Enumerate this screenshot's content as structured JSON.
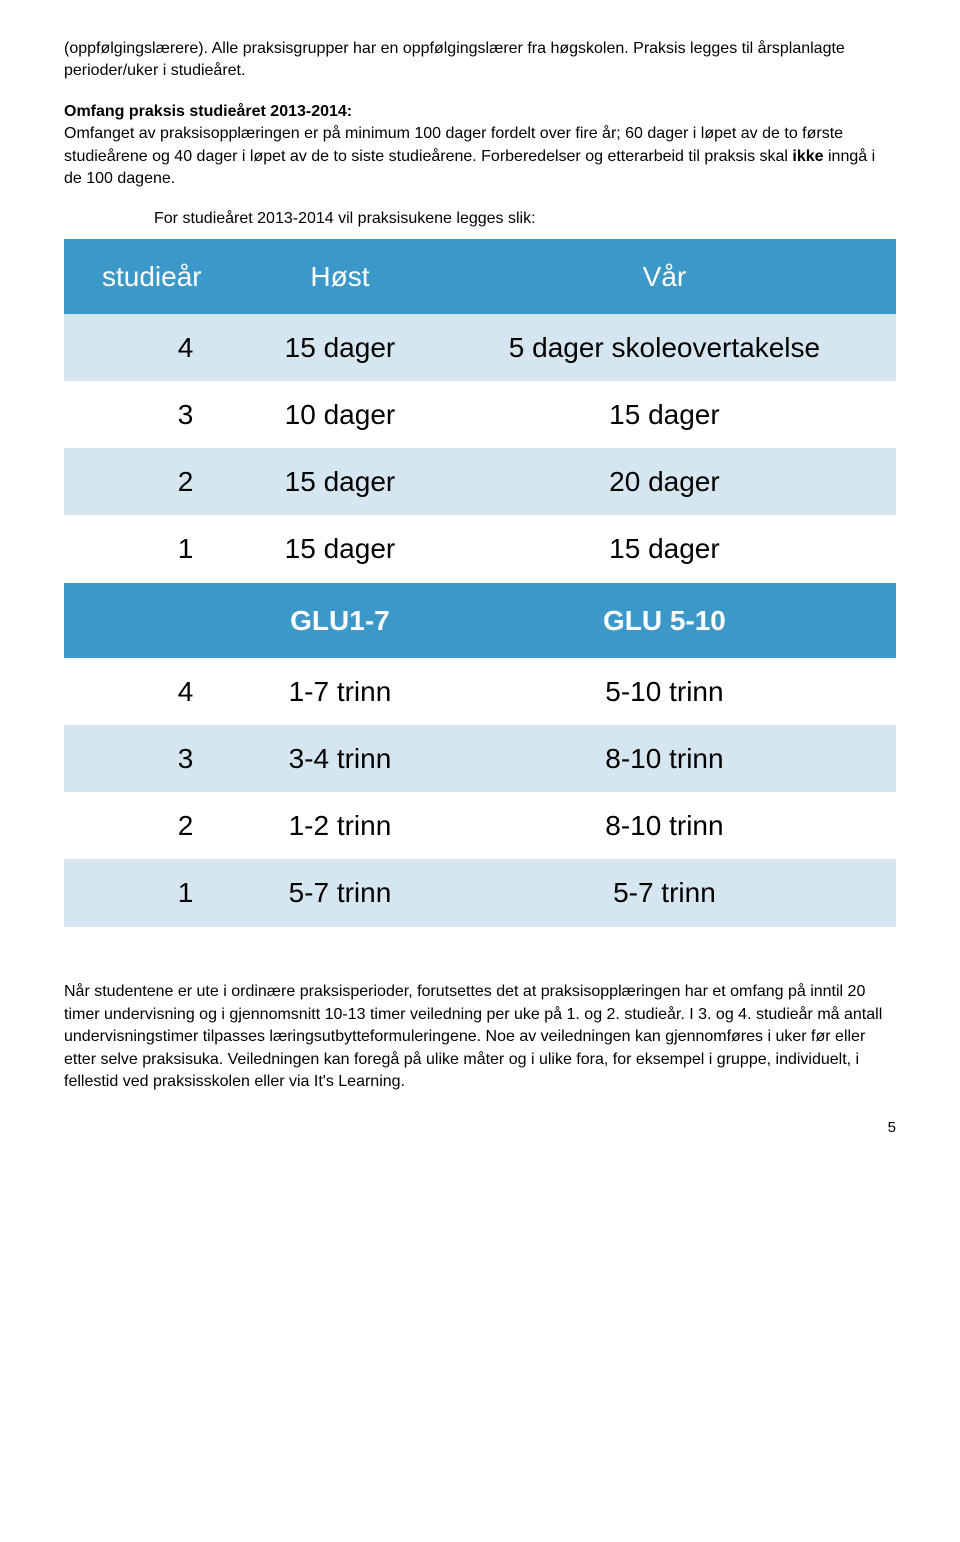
{
  "intro_paragraph": "(oppfølgingslærere). Alle praksisgrupper har en oppfølgingslærer fra høgskolen. Praksis legges til årsplanlagte perioder/uker i studieåret.",
  "section_heading": "Omfang praksis studieåret 2013-2014:",
  "omfang_text_part1": "Omfanget av praksisopplæringen er på minimum 100 dager fordelt over fire år; 60 dager i løpet av de to første studieårene og 40 dager i løpet av de to siste studieårene. Forberedelser og etterarbeid til praksis skal ",
  "omfang_bold": "ikke",
  "omfang_text_part2": " inngå i de 100 dagene.",
  "table_intro": "For studieåret 2013-2014 vil praksisukene legges slik:",
  "table1": {
    "headers": [
      "studieår",
      "Høst",
      "Vår"
    ],
    "rows": [
      {
        "bg": "row-light",
        "cells": [
          "4",
          "15 dager",
          "5 dager skoleovertakelse"
        ]
      },
      {
        "bg": "row-white",
        "cells": [
          "3",
          "10 dager",
          "15 dager"
        ]
      },
      {
        "bg": "row-light",
        "cells": [
          "2",
          "15 dager",
          "20 dager"
        ]
      },
      {
        "bg": "row-white",
        "cells": [
          "1",
          "15 dager",
          "15 dager"
        ]
      }
    ]
  },
  "table2": {
    "headers": [
      "",
      "GLU1-7",
      "GLU 5-10"
    ],
    "rows": [
      {
        "bg": "row-white",
        "cells": [
          "4",
          "1-7 trinn",
          "5-10 trinn"
        ]
      },
      {
        "bg": "row-light",
        "cells": [
          "3",
          "3-4 trinn",
          "8-10 trinn"
        ]
      },
      {
        "bg": "row-white",
        "cells": [
          "2",
          "1-2 trinn",
          "8-10 trinn"
        ]
      },
      {
        "bg": "row-light",
        "cells": [
          "1",
          "5-7 trinn",
          "5-7 trinn"
        ]
      }
    ]
  },
  "closing_paragraph": "Når studentene er ute i ordinære praksisperioder, forutsettes det at praksisopplæringen har et omfang på inntil 20 timer undervisning og i gjennomsnitt 10-13 timer veiledning per uke på 1. og 2. studieår. I 3. og 4. studieår må antall undervisningstimer tilpasses læringsutbytteformuleringene. Noe av veiledningen kan gjennomføres i uker før eller etter selve praksisuka. Veiledningen kan foregå på ulike måter og i ulike fora, for eksempel i gruppe, individuelt, i fellestid ved praksisskolen eller via It's Learning.",
  "page_number": "5",
  "colors": {
    "header_bg": "#3c98c8",
    "header_text": "#ffffff",
    "row_light": "#d6e6f0",
    "row_white": "#ffffff",
    "body_text": "#000000"
  },
  "fonts": {
    "body_size_pt": 12,
    "table_size_pt": 21,
    "table_header_size_pt": 21
  }
}
